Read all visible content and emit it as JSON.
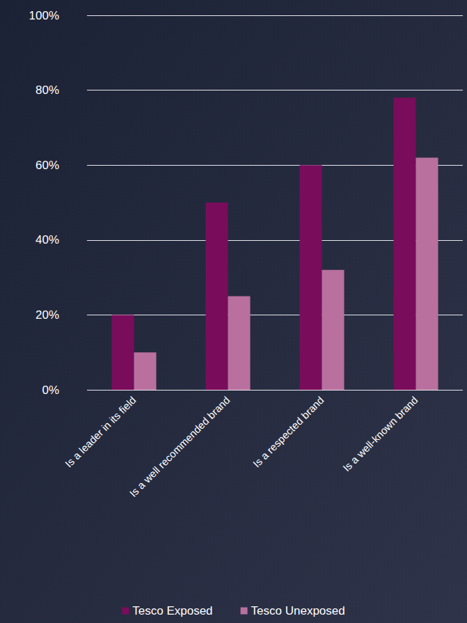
{
  "chart_data": {
    "type": "bar",
    "categories": [
      "Is a leader in its field",
      "Is a well recommended brand",
      "Is a respected brand",
      "Is a well-known brand"
    ],
    "series": [
      {
        "name": "Tesco Exposed",
        "color": "#7a0c5c",
        "values": [
          20,
          50,
          60,
          78
        ]
      },
      {
        "name": "Tesco Unexposed",
        "color": "#b9709f",
        "values": [
          10,
          25,
          32,
          62
        ]
      }
    ],
    "ylim": [
      0,
      100
    ],
    "yticks": [
      {
        "value": 0,
        "label": "0%"
      },
      {
        "value": 20,
        "label": "20%"
      },
      {
        "value": 40,
        "label": "40%"
      },
      {
        "value": 60,
        "label": "60%"
      },
      {
        "value": 80,
        "label": "80%"
      },
      {
        "value": 100,
        "label": "100%"
      }
    ],
    "grid": true,
    "legend": "bottom"
  }
}
